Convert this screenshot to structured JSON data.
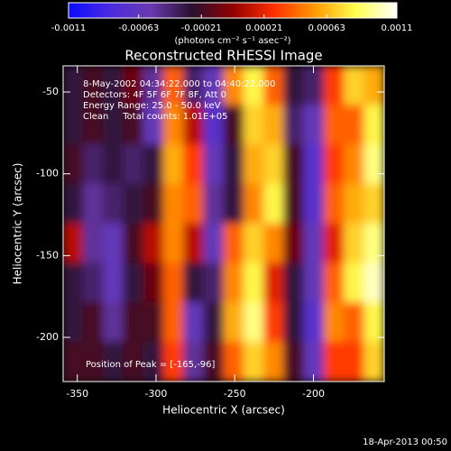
{
  "chart_data": {
    "type": "heatmap",
    "title": "Reconstructed RHESSI Image",
    "x_label": "Heliocentric X (arcsec)",
    "y_label": "Heliocentric Y (arcsec)",
    "xlim": [
      -359,
      -155
    ],
    "ylim": [
      -227,
      -34
    ],
    "xticks": [
      -350,
      -300,
      -250,
      -200
    ],
    "yticks": [
      -50,
      -100,
      -150,
      -200
    ],
    "x": [
      -352.6,
      -339.9,
      -327.1,
      -314.4,
      -301.6,
      -288.9,
      -276.1,
      -263.4,
      -250.6,
      -237.9,
      -225.1,
      -212.4,
      -199.6,
      -186.9,
      -174.1,
      -161.4
    ],
    "y": [
      -46.1,
      -70.2,
      -94.3,
      -118.4,
      -142.6,
      -166.7,
      -190.8,
      -214.9
    ],
    "values": [
      [
        -0.0003,
        -0.0002,
        -0.0003,
        -0.0001,
        -0.0005,
        0.0004,
        -0.0004,
        -0.0006,
        0.0005,
        0.0008,
        0.0004,
        -0.0003,
        -0.0004,
        0.0003,
        0.0007,
        0.0006
      ],
      [
        -0.0003,
        -0.0002,
        -0.0003,
        -0.0002,
        -0.0006,
        0.0005,
        0.0001,
        -0.0007,
        -0.0002,
        0.0007,
        0.0006,
        -0.0004,
        -0.0006,
        0.0004,
        0.0004,
        0.0008
      ],
      [
        -0.0002,
        -0.0004,
        -0.0003,
        -0.0004,
        -0.0003,
        0.0006,
        0.0003,
        -0.0006,
        -0.0003,
        0.0006,
        0.0007,
        -0.0002,
        -0.0007,
        0.0003,
        0.0005,
        0.0009
      ],
      [
        -0.0003,
        -0.0005,
        -0.0004,
        -0.0003,
        -0.0002,
        0.0005,
        0.0004,
        -0.0005,
        -0.0003,
        0.0005,
        0.0008,
        -0.0002,
        -0.0007,
        0.0004,
        0.0006,
        0.0007
      ],
      [
        0.0001,
        -0.0005,
        -0.0006,
        -0.0002,
        0.0001,
        0.0005,
        0.0001,
        -0.0006,
        0.0004,
        0.0007,
        0.0005,
        -0.0001,
        -0.0006,
        0.0002,
        0.0007,
        0.0009
      ],
      [
        -0.0003,
        -0.0004,
        -0.0006,
        -0.0003,
        -0.0001,
        0.0004,
        -0.0003,
        -0.0004,
        0.0005,
        0.0008,
        0.0002,
        -0.0003,
        -0.0006,
        0.0004,
        0.0008,
        0.001
      ],
      [
        -0.0003,
        -0.0002,
        -0.0005,
        -0.0002,
        -0.0002,
        0.0004,
        -0.0006,
        -0.0003,
        0.0006,
        0.0009,
        0.0003,
        -0.0003,
        -0.0007,
        0.0005,
        0.0004,
        0.0008
      ],
      [
        -0.0002,
        -0.0002,
        -0.0003,
        -0.0002,
        -0.0003,
        0.0003,
        -0.0005,
        -0.0002,
        0.0004,
        0.0007,
        0.0005,
        -0.0002,
        -0.0006,
        0.0003,
        0.0003,
        0.0007
      ]
    ],
    "colorbar": {
      "lim": [
        -0.0011,
        0.0011
      ],
      "ticks": [
        -0.0011,
        -0.00063,
        -0.00021,
        0.00021,
        0.00063,
        0.0011
      ],
      "label": "(photons cm⁻² s⁻¹ asec⁻²)",
      "colors": [
        "#0a0aff",
        "#4a2ae0",
        "#6a3ab0",
        "#2a1030",
        "#900000",
        "#ff3000",
        "#ff9a00",
        "#ffff50",
        "#ffffff"
      ]
    },
    "annotations": [
      "8-May-2002 04:34:22.000 to 04:40:22.000",
      "Detectors: 4F 5F 6F 7F 8F, Att 0",
      "Energy Range: 25.0 - 50.0 keV",
      "Clean     Total counts: 1.01E+05",
      "Position of Peak = [-165,-96]"
    ],
    "footer": "18-Apr-2013 00:50"
  }
}
